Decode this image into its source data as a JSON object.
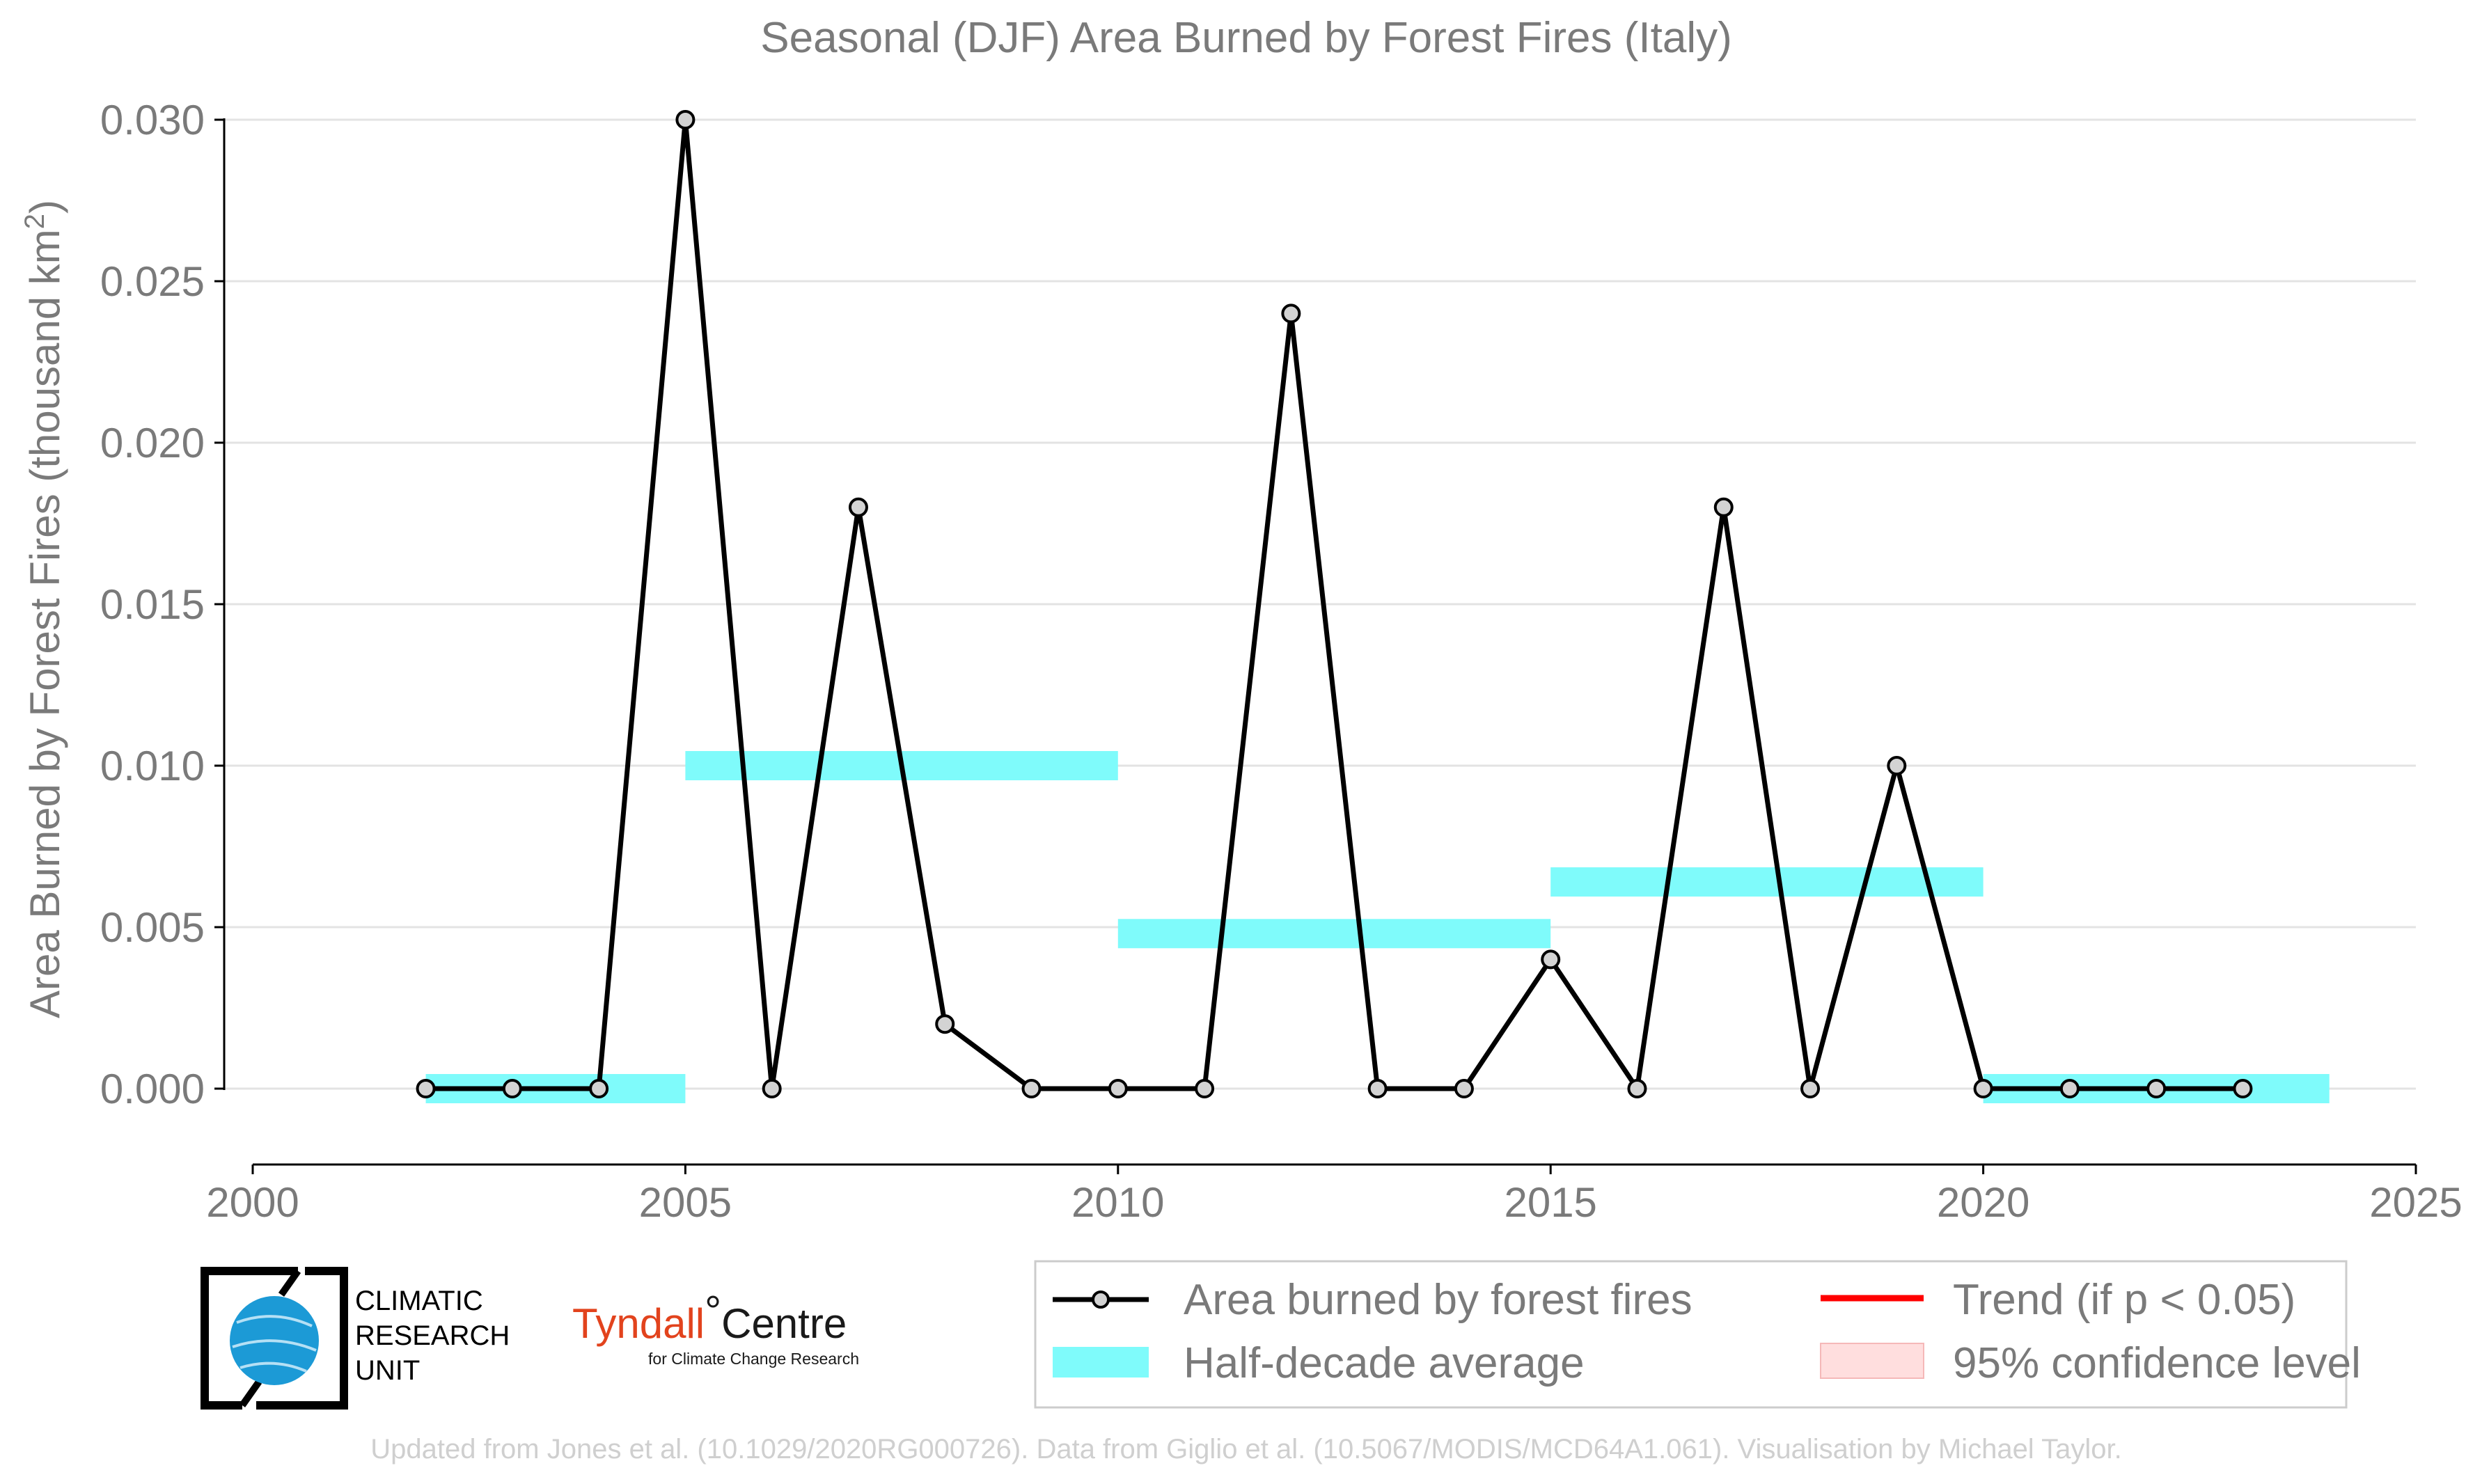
{
  "chart_data": {
    "type": "line",
    "title": "Seasonal (DJF) Area Burned by Forest Fires (Italy)",
    "xlabel": "",
    "ylabel": "Area Burned by Forest Fires (thousand km",
    "ylabel_sup": "2",
    "ylabel_close": ")",
    "xlim": [
      2000,
      2025
    ],
    "ylim": [
      0,
      0.03
    ],
    "x_ticks": [
      "2000",
      "2005",
      "2010",
      "2015",
      "2020",
      "2025"
    ],
    "y_ticks": [
      "0.000",
      "0.005",
      "0.010",
      "0.015",
      "0.020",
      "0.025",
      "0.030"
    ],
    "grid": "horizontal",
    "series": [
      {
        "name": "Area burned by forest fires",
        "color": "#000000",
        "marker_fill": "#d3d3d3",
        "x": [
          2002,
          2003,
          2004,
          2005,
          2006,
          2007,
          2008,
          2009,
          2010,
          2011,
          2012,
          2013,
          2014,
          2015,
          2016,
          2017,
          2018,
          2019,
          2020,
          2021,
          2022,
          2023
        ],
        "y": [
          0.0,
          0.0,
          0.0,
          0.03,
          0.0,
          0.018,
          0.002,
          0.0,
          0.0,
          0.0,
          0.024,
          0.0,
          0.0,
          0.004,
          0.0,
          0.018,
          0.0,
          0.01,
          0.0,
          0.0,
          0.0,
          0.0
        ]
      }
    ],
    "half_decade_average": {
      "name": "Half-decade average",
      "color": "#7ffbfb",
      "segments": [
        {
          "x0": 2002,
          "x1": 2005,
          "y": 0.0
        },
        {
          "x0": 2005,
          "x1": 2010,
          "y": 0.01
        },
        {
          "x0": 2010,
          "x1": 2015,
          "y": 0.0048
        },
        {
          "x0": 2015,
          "x1": 2020,
          "y": 0.0064
        },
        {
          "x0": 2020,
          "x1": 2024,
          "y": 0.0
        }
      ]
    },
    "legend": {
      "placement": "bottom-right",
      "items": [
        {
          "label": "Area burned by forest fires",
          "kind": "line-marker",
          "color": "#000000"
        },
        {
          "label": "Trend (if p < 0.05)",
          "kind": "line",
          "color": "#ff0000"
        },
        {
          "label": "Half-decade average",
          "kind": "band",
          "color": "#7ffbfb"
        },
        {
          "label": "95% confidence level",
          "kind": "patch",
          "color": "#ffdede"
        }
      ]
    }
  },
  "logos": {
    "cru_lines": [
      "CLIMATIC",
      "RESEARCH",
      "UNIT"
    ],
    "tyndall_main": "Tyndall",
    "tyndall_degree": "°",
    "tyndall_centre": "Centre",
    "tyndall_sub": "for Climate Change Research"
  },
  "footer": "Updated from Jones et al. (10.1029/2020RG000726). Data from Giglio et al. (10.5067/MODIS/MCD64A1.061). Visualisation by Michael Taylor."
}
